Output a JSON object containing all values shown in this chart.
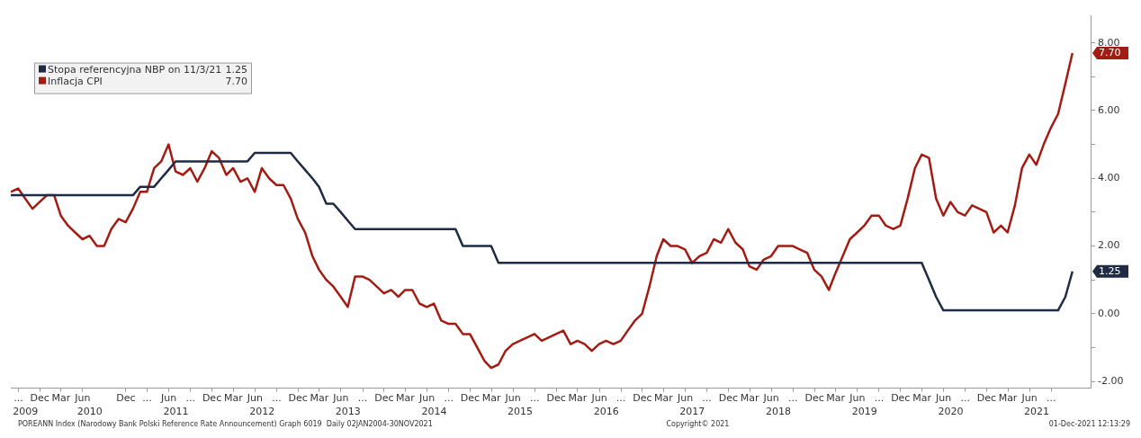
{
  "chart_data": {
    "type": "line",
    "x": [
      "2009-07-31",
      "2009-08-31",
      "2009-09-30",
      "2009-10-31",
      "2009-11-30",
      "2009-12-31",
      "2010-01-31",
      "2010-02-28",
      "2010-03-31",
      "2010-04-30",
      "2010-05-31",
      "2010-06-30",
      "2010-07-31",
      "2010-08-31",
      "2010-09-30",
      "2010-10-31",
      "2010-11-30",
      "2010-12-31",
      "2011-01-31",
      "2011-02-28",
      "2011-03-31",
      "2011-04-30",
      "2011-05-31",
      "2011-06-30",
      "2011-07-31",
      "2011-08-31",
      "2011-09-30",
      "2011-10-31",
      "2011-11-30",
      "2011-12-31",
      "2012-01-31",
      "2012-02-29",
      "2012-03-31",
      "2012-04-30",
      "2012-05-31",
      "2012-06-30",
      "2012-07-31",
      "2012-08-31",
      "2012-09-30",
      "2012-10-31",
      "2012-11-30",
      "2012-12-31",
      "2013-01-31",
      "2013-02-28",
      "2013-03-31",
      "2013-04-30",
      "2013-05-31",
      "2013-06-30",
      "2013-07-31",
      "2013-08-31",
      "2013-09-30",
      "2013-10-31",
      "2013-11-30",
      "2013-12-31",
      "2014-01-31",
      "2014-02-28",
      "2014-03-31",
      "2014-04-30",
      "2014-05-31",
      "2014-06-30",
      "2014-07-31",
      "2014-08-31",
      "2014-09-30",
      "2014-10-31",
      "2014-11-30",
      "2014-12-31",
      "2015-01-31",
      "2015-02-28",
      "2015-03-31",
      "2015-04-30",
      "2015-05-31",
      "2015-06-30",
      "2015-07-31",
      "2015-08-31",
      "2015-09-30",
      "2015-10-31",
      "2015-11-30",
      "2015-12-31",
      "2016-01-31",
      "2016-02-29",
      "2016-03-31",
      "2016-04-30",
      "2016-05-31",
      "2016-06-30",
      "2016-07-31",
      "2016-08-31",
      "2016-09-30",
      "2016-10-31",
      "2016-11-30",
      "2016-12-31",
      "2017-01-31",
      "2017-02-28",
      "2017-03-31",
      "2017-04-30",
      "2017-05-31",
      "2017-06-30",
      "2017-07-31",
      "2017-08-31",
      "2017-09-30",
      "2017-10-31",
      "2017-11-30",
      "2017-12-31",
      "2018-01-31",
      "2018-02-28",
      "2018-03-31",
      "2018-04-30",
      "2018-05-31",
      "2018-06-30",
      "2018-07-31",
      "2018-08-31",
      "2018-09-30",
      "2018-10-31",
      "2018-11-30",
      "2018-12-31",
      "2019-01-31",
      "2019-02-28",
      "2019-03-31",
      "2019-04-30",
      "2019-05-31",
      "2019-06-30",
      "2019-07-31",
      "2019-08-31",
      "2019-09-30",
      "2019-10-31",
      "2019-11-30",
      "2019-12-31",
      "2020-01-31",
      "2020-02-29",
      "2020-03-31",
      "2020-04-30",
      "2020-05-31",
      "2020-06-30",
      "2020-07-31",
      "2020-08-31",
      "2020-09-30",
      "2020-10-31",
      "2020-11-30",
      "2020-12-31",
      "2021-01-31",
      "2021-02-28",
      "2021-03-31",
      "2021-04-30",
      "2021-05-31",
      "2021-06-30",
      "2021-07-31",
      "2021-08-31",
      "2021-09-30",
      "2021-10-31",
      "2021-11-30"
    ],
    "series": [
      {
        "name": "Stopa referencyjna NBP on 11/3/21 1.25",
        "color": "#1f2a44",
        "values": [
          3.5,
          3.5,
          3.5,
          3.5,
          3.5,
          3.5,
          3.5,
          3.5,
          3.5,
          3.5,
          3.5,
          3.5,
          3.5,
          3.5,
          3.5,
          3.5,
          3.5,
          3.5,
          3.75,
          3.75,
          3.75,
          4.0,
          4.25,
          4.5,
          4.5,
          4.5,
          4.5,
          4.5,
          4.5,
          4.5,
          4.5,
          4.5,
          4.5,
          4.5,
          4.75,
          4.75,
          4.75,
          4.75,
          4.75,
          4.75,
          4.5,
          4.25,
          4.0,
          3.75,
          3.25,
          3.25,
          3.0,
          2.75,
          2.5,
          2.5,
          2.5,
          2.5,
          2.5,
          2.5,
          2.5,
          2.5,
          2.5,
          2.5,
          2.5,
          2.5,
          2.5,
          2.5,
          2.5,
          2.0,
          2.0,
          2.0,
          2.0,
          2.0,
          1.5,
          1.5,
          1.5,
          1.5,
          1.5,
          1.5,
          1.5,
          1.5,
          1.5,
          1.5,
          1.5,
          1.5,
          1.5,
          1.5,
          1.5,
          1.5,
          1.5,
          1.5,
          1.5,
          1.5,
          1.5,
          1.5,
          1.5,
          1.5,
          1.5,
          1.5,
          1.5,
          1.5,
          1.5,
          1.5,
          1.5,
          1.5,
          1.5,
          1.5,
          1.5,
          1.5,
          1.5,
          1.5,
          1.5,
          1.5,
          1.5,
          1.5,
          1.5,
          1.5,
          1.5,
          1.5,
          1.5,
          1.5,
          1.5,
          1.5,
          1.5,
          1.5,
          1.5,
          1.5,
          1.5,
          1.5,
          1.5,
          1.5,
          1.5,
          1.5,
          1.0,
          0.5,
          0.1,
          0.1,
          0.1,
          0.1,
          0.1,
          0.1,
          0.1,
          0.1,
          0.1,
          0.1,
          0.1,
          0.1,
          0.1,
          0.1,
          0.1,
          0.1,
          0.1,
          0.5,
          1.25
        ]
      },
      {
        "name": "Inflacja CPI 7.70",
        "color": "#a31c14",
        "values": [
          3.6,
          3.7,
          3.4,
          3.1,
          3.3,
          3.5,
          3.5,
          2.9,
          2.6,
          2.4,
          2.2,
          2.3,
          2.0,
          2.0,
          2.5,
          2.8,
          2.7,
          3.1,
          3.6,
          3.6,
          4.3,
          4.5,
          5.0,
          4.2,
          4.1,
          4.3,
          3.9,
          4.3,
          4.8,
          4.6,
          4.1,
          4.3,
          3.9,
          4.0,
          3.6,
          4.3,
          4.0,
          3.8,
          3.8,
          3.4,
          2.8,
          2.4,
          1.7,
          1.3,
          1.0,
          0.8,
          0.5,
          0.2,
          1.1,
          1.1,
          1.0,
          0.8,
          0.6,
          0.7,
          0.5,
          0.7,
          0.7,
          0.3,
          0.2,
          0.3,
          -0.2,
          -0.3,
          -0.3,
          -0.6,
          -0.6,
          -1.0,
          -1.4,
          -1.6,
          -1.5,
          -1.1,
          -0.9,
          -0.8,
          -0.7,
          -0.6,
          -0.8,
          -0.7,
          -0.6,
          -0.5,
          -0.9,
          -0.8,
          -0.9,
          -1.1,
          -0.9,
          -0.8,
          -0.9,
          -0.8,
          -0.5,
          -0.2,
          0.0,
          0.8,
          1.7,
          2.2,
          2.0,
          2.0,
          1.9,
          1.5,
          1.7,
          1.8,
          2.2,
          2.1,
          2.5,
          2.1,
          1.9,
          1.4,
          1.3,
          1.6,
          1.7,
          2.0,
          2.0,
          2.0,
          1.9,
          1.8,
          1.3,
          1.1,
          0.7,
          1.2,
          1.7,
          2.2,
          2.4,
          2.6,
          2.9,
          2.9,
          2.6,
          2.5,
          2.6,
          3.4,
          4.3,
          4.7,
          4.6,
          3.4,
          2.9,
          3.3,
          3.0,
          2.9,
          3.2,
          3.1,
          3.0,
          2.4,
          2.6,
          2.4,
          3.2,
          4.3,
          4.7,
          4.4,
          5.0,
          5.5,
          5.9,
          6.8,
          7.7
        ]
      }
    ],
    "xlim": [
      "2009-07-31",
      "2022-02-15"
    ],
    "xticks": [
      {
        "value": "2009-09",
        "label": "..."
      },
      {
        "value": "2009-12",
        "label": "Dec"
      },
      {
        "value": "2010-03",
        "label": "Mar"
      },
      {
        "value": "2010-06",
        "label": "Jun"
      },
      {
        "value": "2010-12",
        "label": "Dec"
      },
      {
        "value": "2011-03",
        "label": "..."
      },
      {
        "value": "2011-06",
        "label": "Jun"
      },
      {
        "value": "2011-09",
        "label": "..."
      },
      {
        "value": "2011-12",
        "label": "Dec"
      },
      {
        "value": "2012-03",
        "label": "Mar"
      },
      {
        "value": "2012-06",
        "label": "Jun"
      },
      {
        "value": "2012-09",
        "label": "..."
      },
      {
        "value": "2012-12",
        "label": "Dec"
      },
      {
        "value": "2013-03",
        "label": "Mar"
      },
      {
        "value": "2013-06",
        "label": "Jun"
      },
      {
        "value": "2013-09",
        "label": "..."
      },
      {
        "value": "2013-12",
        "label": "Dec"
      },
      {
        "value": "2014-03",
        "label": "Mar"
      },
      {
        "value": "2014-06",
        "label": "Jun"
      },
      {
        "value": "2014-09",
        "label": "..."
      },
      {
        "value": "2014-12",
        "label": "Dec"
      },
      {
        "value": "2015-03",
        "label": "Mar"
      },
      {
        "value": "2015-06",
        "label": "Jun"
      },
      {
        "value": "2015-09",
        "label": "..."
      },
      {
        "value": "2015-12",
        "label": "Dec"
      },
      {
        "value": "2016-03",
        "label": "Mar"
      },
      {
        "value": "2016-06",
        "label": "Jun"
      },
      {
        "value": "2016-09",
        "label": "..."
      },
      {
        "value": "2016-12",
        "label": "Dec"
      },
      {
        "value": "2017-03",
        "label": "Mar"
      },
      {
        "value": "2017-06",
        "label": "Jun"
      },
      {
        "value": "2017-09",
        "label": "..."
      },
      {
        "value": "2017-12",
        "label": "Dec"
      },
      {
        "value": "2018-03",
        "label": "Mar"
      },
      {
        "value": "2018-06",
        "label": "Jun"
      },
      {
        "value": "2018-09",
        "label": "..."
      },
      {
        "value": "2018-12",
        "label": "Dec"
      },
      {
        "value": "2019-03",
        "label": "Mar"
      },
      {
        "value": "2019-06",
        "label": "Jun"
      },
      {
        "value": "2019-09",
        "label": "..."
      },
      {
        "value": "2019-12",
        "label": "Dec"
      },
      {
        "value": "2020-03",
        "label": "Mar"
      },
      {
        "value": "2020-06",
        "label": "Jun"
      },
      {
        "value": "2020-09",
        "label": "..."
      },
      {
        "value": "2020-12",
        "label": "Dec"
      },
      {
        "value": "2021-03",
        "label": "Mar"
      },
      {
        "value": "2021-06",
        "label": "Jun"
      },
      {
        "value": "2021-09",
        "label": "..."
      }
    ],
    "x2lim": [
      "2009-07-31",
      "2022-02-15"
    ],
    "x2ticks": [
      {
        "value": "2009-10",
        "label": "2009"
      },
      {
        "value": "2010-07",
        "label": "2010"
      },
      {
        "value": "2011-07",
        "label": "2011"
      },
      {
        "value": "2012-07",
        "label": "2012"
      },
      {
        "value": "2013-07",
        "label": "2013"
      },
      {
        "value": "2014-07",
        "label": "2014"
      },
      {
        "value": "2015-07",
        "label": "2015"
      },
      {
        "value": "2016-07",
        "label": "2016"
      },
      {
        "value": "2017-07",
        "label": "2017"
      },
      {
        "value": "2018-07",
        "label": "2018"
      },
      {
        "value": "2019-07",
        "label": "2019"
      },
      {
        "value": "2020-07",
        "label": "2020"
      },
      {
        "value": "2021-07",
        "label": "2021"
      }
    ],
    "ylim": [
      -2.2,
      8.8
    ],
    "yticks": [
      {
        "value": -2,
        "label": "-2.00"
      },
      {
        "value": -1,
        "label": null
      },
      {
        "value": 0,
        "label": "0.00"
      },
      {
        "value": 1,
        "label": null
      },
      {
        "value": 2,
        "label": "2.00"
      },
      {
        "value": 3,
        "label": null
      },
      {
        "value": 4,
        "label": "4.00"
      },
      {
        "value": 5,
        "label": null
      },
      {
        "value": 6,
        "label": "6.00"
      },
      {
        "value": 7,
        "label": null
      },
      {
        "value": 8,
        "label": "8.00"
      }
    ],
    "annotations": [
      {
        "text": "7.70",
        "x": "2021-11-30",
        "y": 7.7
      },
      {
        "text": "1.25",
        "x": "2021-11-30",
        "y": 1.25
      },
      "POREANN Index (Narodowy Bank Polski Reference Rate Announcement) Graph 6019  Daily 02JAN2004-30NOV2021",
      "Copyright© 2021",
      "01-Dec-2021 12:13:29"
    ],
    "legend": "top left",
    "grid": false,
    "marker": "none",
    "line_style": "solid"
  }
}
